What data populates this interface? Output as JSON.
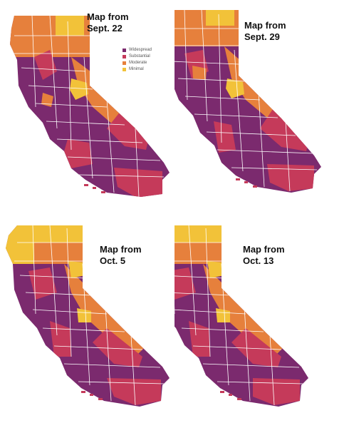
{
  "colors": {
    "widespread": "#7b2a6e",
    "substantial": "#c53a5a",
    "moderate": "#e6803c",
    "minimal": "#f2c239",
    "county_border": "#ffffff"
  },
  "legend": [
    {
      "label": "Widespread",
      "tier": "widespread"
    },
    {
      "label": "Substantial",
      "tier": "substantial"
    },
    {
      "label": "Moderate",
      "tier": "moderate"
    },
    {
      "label": "Minimal",
      "tier": "minimal"
    }
  ],
  "maps": [
    {
      "title_line1": "Map from",
      "title_line2": "Sept. 22"
    },
    {
      "title_line1": "Map from",
      "title_line2": "Sept. 29"
    },
    {
      "title_line1": "Map from",
      "title_line2": "Oct. 5"
    },
    {
      "title_line1": "Map from",
      "title_line2": "Oct. 13"
    }
  ]
}
